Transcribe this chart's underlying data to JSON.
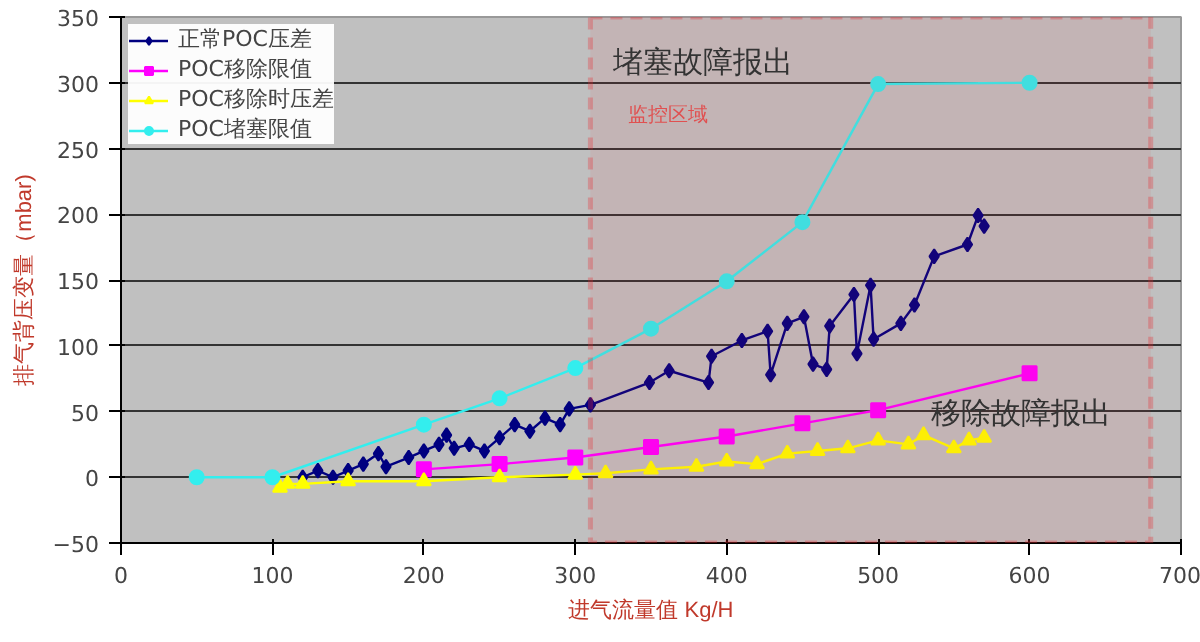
{
  "chart_data": {
    "type": "line",
    "xlabel": "进气流量值 Kg/H",
    "ylabel": "排气背压变量（mbar)",
    "xlim": [
      0,
      700
    ],
    "xticks": [
      0,
      100,
      200,
      300,
      400,
      500,
      600,
      700
    ],
    "ylim": [
      -50,
      350
    ],
    "yticks": [
      -50,
      0,
      50,
      100,
      150,
      200,
      250,
      300,
      350
    ],
    "grid": "y",
    "legend": "top left",
    "annotations": [
      "堵塞故障报出",
      "监控区域",
      "移除故障报出"
    ],
    "bands": [
      {
        "axis": "x",
        "from": 310,
        "to": 680,
        "color": "#e8282d"
      }
    ],
    "series": [
      {
        "name": "正常POC压差",
        "color": "#000080",
        "marker": "diamond",
        "x": [
          120,
          130,
          140,
          150,
          160,
          170,
          175,
          190,
          200,
          210,
          215,
          220,
          230,
          240,
          250,
          260,
          270,
          280,
          290,
          296,
          310,
          349,
          362,
          388,
          390,
          410,
          427,
          429,
          440,
          451,
          457,
          466,
          468,
          484,
          486,
          495,
          497,
          515,
          524,
          537,
          559,
          566,
          570
        ],
        "values": [
          0,
          5,
          0,
          5,
          10,
          18,
          8,
          15,
          20,
          25,
          32,
          22,
          25,
          20,
          30,
          40,
          35,
          45,
          40,
          52,
          55,
          72,
          81,
          72,
          92,
          104,
          111,
          78,
          117,
          122,
          86,
          82,
          115,
          139,
          94,
          146,
          105,
          117,
          131,
          168,
          177,
          199,
          191
        ]
      },
      {
        "name": "POC移除限值",
        "color": "#ff00ff",
        "marker": "square",
        "x": [
          200,
          250,
          300,
          350,
          400,
          450,
          500,
          600
        ],
        "values": [
          6,
          10,
          15,
          23,
          31,
          41,
          51,
          79
        ]
      },
      {
        "name": "POC移除时压差",
        "color": "#ffff00",
        "marker": "triangle",
        "x": [
          105,
          110,
          120,
          150,
          200,
          250,
          300,
          320,
          350,
          380,
          400,
          420,
          440,
          460,
          480,
          500,
          520,
          530,
          550,
          560,
          570
        ],
        "values": [
          -8,
          -5,
          -5,
          -3,
          -3,
          0,
          2,
          3,
          6,
          8,
          12,
          10,
          18,
          20,
          22,
          28,
          25,
          32,
          22,
          28,
          30
        ]
      },
      {
        "name": "POC堵塞限值",
        "color": "#33eeee",
        "marker": "circle",
        "x": [
          50,
          100,
          200,
          250,
          300,
          350,
          400,
          450,
          500,
          600
        ],
        "values": [
          0,
          0,
          40,
          60,
          83,
          113,
          149,
          194,
          299,
          300
        ]
      }
    ]
  }
}
